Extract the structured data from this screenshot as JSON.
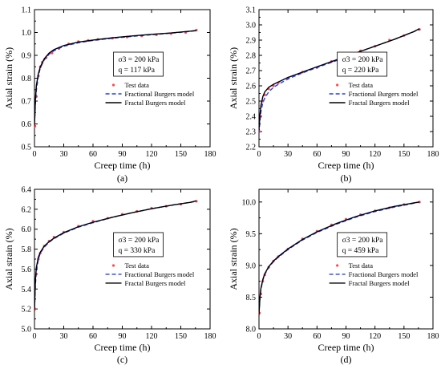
{
  "chart_data": [
    {
      "type": "line",
      "panel_label": "(a)",
      "xlabel": "Creep time (h)",
      "ylabel": "Axial strain (%)",
      "xlim": [
        0,
        180
      ],
      "ylim": [
        0.5,
        1.1
      ],
      "xticks": [
        0,
        30,
        60,
        90,
        120,
        150,
        180
      ],
      "xtick_labels": [
        "0",
        "30",
        "60",
        "90",
        "120",
        "150",
        "180"
      ],
      "yticks": [
        0.5,
        0.6,
        0.7,
        0.8,
        0.9,
        1.0,
        1.1
      ],
      "ytick_labels": [
        "0.5",
        "0.6",
        "0.7",
        "0.8",
        "0.9",
        "1.0",
        "1.1"
      ],
      "annotation": [
        "σ3 = 200 kPa",
        "q = 117 kPa"
      ],
      "legend": [
        "Test data",
        "Fractional Burgers model",
        "Fractal Burgers model"
      ],
      "legend_position": "center-right",
      "series": [
        {
          "name": "Test data",
          "x": [
            0.5,
            2,
            4,
            6,
            8,
            12,
            18,
            25,
            35,
            45,
            55,
            65,
            80,
            95,
            110,
            125,
            140,
            155,
            166
          ],
          "y": [
            0.59,
            0.72,
            0.81,
            0.85,
            0.87,
            0.89,
            0.91,
            0.93,
            0.95,
            0.96,
            0.965,
            0.97,
            0.975,
            0.98,
            0.985,
            0.99,
            0.995,
            1.0,
            1.01
          ]
        },
        {
          "name": "Fractional Burgers model",
          "x": [
            0,
            1,
            2,
            4,
            6,
            10,
            15,
            20,
            30,
            45,
            60,
            80,
            100,
            120,
            140,
            160,
            166
          ],
          "y": [
            0.6,
            0.69,
            0.75,
            0.81,
            0.845,
            0.88,
            0.905,
            0.92,
            0.94,
            0.955,
            0.965,
            0.975,
            0.983,
            0.99,
            0.997,
            1.005,
            1.008
          ]
        },
        {
          "name": "Fractal Burgers model",
          "x": [
            0,
            1,
            2,
            4,
            6,
            10,
            15,
            20,
            30,
            45,
            60,
            80,
            100,
            120,
            140,
            160,
            166
          ],
          "y": [
            0.59,
            0.71,
            0.77,
            0.82,
            0.85,
            0.885,
            0.91,
            0.925,
            0.943,
            0.958,
            0.967,
            0.977,
            0.985,
            0.992,
            0.998,
            1.006,
            1.009
          ]
        }
      ]
    },
    {
      "type": "line",
      "panel_label": "(b)",
      "xlabel": "Creep time (h)",
      "ylabel": "Axial strain (%)",
      "xlim": [
        0,
        180
      ],
      "ylim": [
        2.2,
        3.1
      ],
      "xticks": [
        0,
        30,
        60,
        90,
        120,
        150,
        180
      ],
      "xtick_labels": [
        "0",
        "30",
        "60",
        "90",
        "120",
        "150",
        "180"
      ],
      "yticks": [
        2.2,
        2.3,
        2.4,
        2.5,
        2.6,
        2.7,
        2.8,
        2.9,
        3.0,
        3.1
      ],
      "ytick_labels": [
        "2.2",
        "2.3",
        "2.4",
        "2.5",
        "2.6",
        "2.7",
        "2.8",
        "2.9",
        "3.0",
        "3.1"
      ],
      "annotation": [
        "σ3 = 200 kPa",
        "q = 220 kPa"
      ],
      "legend": [
        "Test data",
        "Fractional Burgers model",
        "Fractal Burgers model"
      ],
      "legend_position": "center-right",
      "series": [
        {
          "name": "Test data",
          "x": [
            0.5,
            2,
            4,
            6,
            10,
            15,
            20,
            30,
            45,
            60,
            75,
            90,
            105,
            120,
            135,
            150,
            166
          ],
          "y": [
            2.3,
            2.4,
            2.5,
            2.54,
            2.58,
            2.6,
            2.62,
            2.65,
            2.69,
            2.72,
            2.76,
            2.79,
            2.83,
            2.86,
            2.9,
            2.93,
            2.97
          ]
        },
        {
          "name": "Fractional Burgers model",
          "x": [
            0,
            1,
            2,
            4,
            6,
            10,
            15,
            20,
            30,
            45,
            60,
            80,
            100,
            120,
            140,
            160,
            166
          ],
          "y": [
            2.29,
            2.37,
            2.43,
            2.49,
            2.52,
            2.56,
            2.59,
            2.61,
            2.645,
            2.685,
            2.72,
            2.765,
            2.815,
            2.86,
            2.905,
            2.955,
            2.97
          ]
        },
        {
          "name": "Fractal Burgers model",
          "x": [
            0,
            1,
            2,
            4,
            6,
            10,
            15,
            20,
            30,
            45,
            60,
            80,
            100,
            120,
            140,
            160,
            166
          ],
          "y": [
            2.31,
            2.41,
            2.47,
            2.53,
            2.56,
            2.59,
            2.61,
            2.625,
            2.655,
            2.69,
            2.725,
            2.77,
            2.815,
            2.86,
            2.905,
            2.955,
            2.975
          ]
        }
      ]
    },
    {
      "type": "line",
      "panel_label": "(c)",
      "xlabel": "Creep time (h)",
      "ylabel": "Axial strain (%)",
      "xlim": [
        0,
        180
      ],
      "ylim": [
        5.0,
        6.4
      ],
      "xticks": [
        0,
        30,
        60,
        90,
        120,
        150,
        180
      ],
      "xtick_labels": [
        "0",
        "30",
        "60",
        "90",
        "120",
        "150",
        "180"
      ],
      "yticks": [
        5.0,
        5.2,
        5.4,
        5.6,
        5.8,
        6.0,
        6.2,
        6.4
      ],
      "ytick_labels": [
        "5.0",
        "5.2",
        "5.4",
        "5.6",
        "5.8",
        "6.0",
        "6.2",
        "6.4"
      ],
      "annotation": [
        "σ3 = 200 kPa",
        "q = 330 kPa"
      ],
      "legend": [
        "Test data",
        "Fractional Burgers model",
        "Fractal Burgers model"
      ],
      "legend_position": "center-right",
      "series": [
        {
          "name": "Test data",
          "x": [
            0.5,
            2,
            4,
            6,
            10,
            15,
            20,
            30,
            45,
            60,
            75,
            90,
            105,
            120,
            135,
            150,
            166
          ],
          "y": [
            5.2,
            5.55,
            5.7,
            5.76,
            5.83,
            5.88,
            5.92,
            5.97,
            6.03,
            6.08,
            6.11,
            6.15,
            6.18,
            6.21,
            6.23,
            6.25,
            6.28
          ]
        },
        {
          "name": "Fractional Burgers model",
          "x": [
            0,
            1,
            2,
            4,
            6,
            10,
            15,
            20,
            30,
            45,
            60,
            80,
            100,
            120,
            140,
            160,
            166
          ],
          "y": [
            5.2,
            5.45,
            5.58,
            5.7,
            5.76,
            5.82,
            5.87,
            5.905,
            5.96,
            6.02,
            6.065,
            6.12,
            6.165,
            6.205,
            6.24,
            6.27,
            6.28
          ]
        },
        {
          "name": "Fractal Burgers model",
          "x": [
            0,
            1,
            2,
            4,
            6,
            10,
            15,
            20,
            30,
            45,
            60,
            80,
            100,
            120,
            140,
            160,
            166
          ],
          "y": [
            5.18,
            5.5,
            5.62,
            5.72,
            5.77,
            5.83,
            5.875,
            5.91,
            5.965,
            6.025,
            6.07,
            6.12,
            6.165,
            6.205,
            6.24,
            6.27,
            6.285
          ]
        }
      ]
    },
    {
      "type": "line",
      "panel_label": "(d)",
      "xlabel": "Creep time (h)",
      "ylabel": "Axial strain (%)",
      "xlim": [
        0,
        180
      ],
      "ylim": [
        8.0,
        10.2
      ],
      "xticks": [
        0,
        30,
        60,
        90,
        120,
        150,
        180
      ],
      "xtick_labels": [
        "0",
        "30",
        "60",
        "90",
        "120",
        "150",
        "180"
      ],
      "yticks": [
        8.0,
        8.5,
        9.0,
        9.5,
        10.0
      ],
      "ytick_labels": [
        "8.0",
        "8.5",
        "9.0",
        "9.5",
        "10.0"
      ],
      "annotation": [
        "σ3 = 200 kPa",
        "q = 459 kPa"
      ],
      "legend": [
        "Test data",
        "Fractional Burgers model",
        "Fractal Burgers model"
      ],
      "legend_position": "center-right",
      "series": [
        {
          "name": "Test data",
          "x": [
            0.5,
            2,
            4,
            6,
            10,
            15,
            20,
            30,
            45,
            60,
            75,
            90,
            105,
            120,
            135,
            150,
            166
          ],
          "y": [
            8.25,
            8.55,
            8.75,
            8.85,
            8.97,
            9.07,
            9.14,
            9.26,
            9.42,
            9.54,
            9.64,
            9.73,
            9.8,
            9.86,
            9.91,
            9.96,
            10.0
          ]
        },
        {
          "name": "Fractional Burgers model",
          "x": [
            0,
            1,
            2,
            4,
            6,
            10,
            15,
            20,
            30,
            45,
            60,
            80,
            100,
            120,
            140,
            160,
            166
          ],
          "y": [
            8.25,
            8.48,
            8.62,
            8.77,
            8.86,
            8.97,
            9.06,
            9.13,
            9.25,
            9.4,
            9.52,
            9.65,
            9.76,
            9.85,
            9.92,
            9.98,
            10.0
          ]
        },
        {
          "name": "Fractal Burgers model",
          "x": [
            0,
            1,
            2,
            4,
            6,
            10,
            15,
            20,
            30,
            45,
            60,
            80,
            100,
            120,
            140,
            160,
            166
          ],
          "y": [
            8.22,
            8.5,
            8.64,
            8.78,
            8.87,
            8.98,
            9.07,
            9.14,
            9.26,
            9.41,
            9.53,
            9.66,
            9.77,
            9.86,
            9.93,
            9.985,
            10.0
          ]
        }
      ]
    }
  ]
}
